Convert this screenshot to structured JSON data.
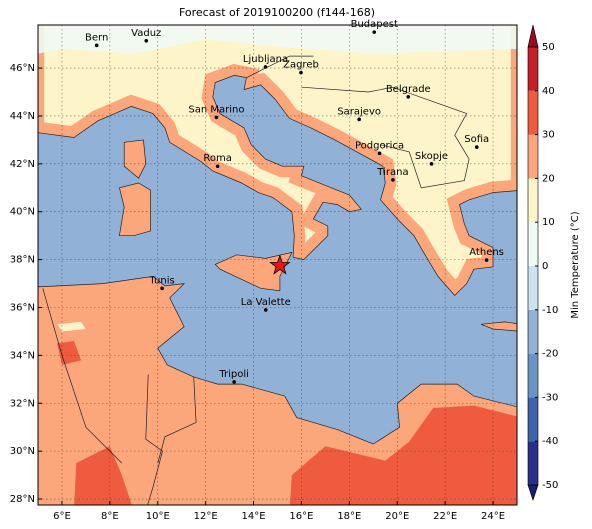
{
  "map": {
    "title": "Forecast of 2019100200 (f144-168)",
    "xlim": [
      5,
      25
    ],
    "ylim": [
      27.75,
      47.8
    ],
    "xticks": [
      {
        "value": 6,
        "label": "6°E"
      },
      {
        "value": 8,
        "label": "8°E"
      },
      {
        "value": 10,
        "label": "10°E"
      },
      {
        "value": 12,
        "label": "12°E"
      },
      {
        "value": 14,
        "label": "14°E"
      },
      {
        "value": 16,
        "label": "16°E"
      },
      {
        "value": 18,
        "label": "18°E"
      },
      {
        "value": 20,
        "label": "20°E"
      },
      {
        "value": 22,
        "label": "22°E"
      },
      {
        "value": 24,
        "label": "24°E"
      }
    ],
    "yticks": [
      {
        "value": 28,
        "label": "28°N"
      },
      {
        "value": 30,
        "label": "30°N"
      },
      {
        "value": 32,
        "label": "32°N"
      },
      {
        "value": 34,
        "label": "34°N"
      },
      {
        "value": 36,
        "label": "36°N"
      },
      {
        "value": 38,
        "label": "38°N"
      },
      {
        "value": 40,
        "label": "40°N"
      },
      {
        "value": 42,
        "label": "42°N"
      },
      {
        "value": 44,
        "label": "44°N"
      },
      {
        "value": 46,
        "label": "46°N"
      }
    ],
    "grid": true,
    "cities": [
      {
        "name": "Bern",
        "lon": 7.45,
        "lat": 46.95
      },
      {
        "name": "Vaduz",
        "lon": 9.52,
        "lat": 47.14
      },
      {
        "name": "Budapest",
        "lon": 19.04,
        "lat": 47.5
      },
      {
        "name": "Ljubljana",
        "lon": 14.5,
        "lat": 46.05
      },
      {
        "name": "Zagreb",
        "lon": 15.98,
        "lat": 45.81
      },
      {
        "name": "Belgrade",
        "lon": 20.46,
        "lat": 44.8
      },
      {
        "name": "San Marino",
        "lon": 12.45,
        "lat": 43.94
      },
      {
        "name": "Sarajevo",
        "lon": 18.41,
        "lat": 43.86
      },
      {
        "name": "Sofia",
        "lon": 23.32,
        "lat": 42.7
      },
      {
        "name": "Podgorica",
        "lon": 19.26,
        "lat": 42.44
      },
      {
        "name": "Skopje",
        "lon": 21.43,
        "lat": 42.0
      },
      {
        "name": "Roma",
        "lon": 12.5,
        "lat": 41.9
      },
      {
        "name": "Tirana",
        "lon": 19.82,
        "lat": 41.33
      },
      {
        "name": "Athens",
        "lon": 23.73,
        "lat": 37.98
      },
      {
        "name": "Tunis",
        "lon": 10.18,
        "lat": 36.8
      },
      {
        "name": "La Valette",
        "lon": 14.51,
        "lat": 35.9
      },
      {
        "name": "Tripoli",
        "lon": 13.19,
        "lat": 32.89
      }
    ],
    "marker": {
      "lon": 15.1,
      "lat": 37.75,
      "color": "#e8141c"
    },
    "colorbar": {
      "label": "Min Temperature (°C)",
      "ticks": [
        -50,
        -40,
        -30,
        -20,
        -10,
        0,
        10,
        20,
        30,
        40,
        50
      ],
      "colors": [
        "#2b2f8c",
        "#3f63aa",
        "#6a94c4",
        "#92b1d7",
        "#c9e4ef",
        "#f1f9f4",
        "#fdf5c9",
        "#fca67b",
        "#ee5b3e",
        "#c4202a"
      ],
      "extend_colors": [
        "#1a1f6e",
        "#9a0a20"
      ]
    }
  }
}
